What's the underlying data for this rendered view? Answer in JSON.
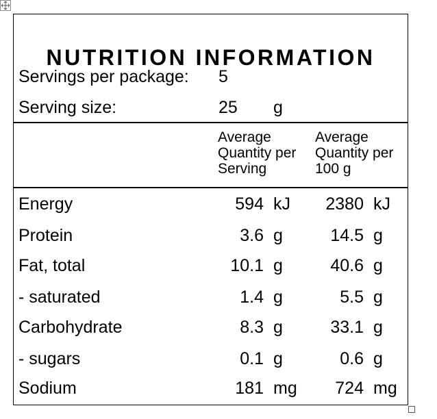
{
  "panel": {
    "title": "NUTRITION INFORMATION",
    "servings_per_package_label": "Servings per package:",
    "servings_per_package_value": "5",
    "serving_size_label": "Serving size:",
    "serving_size_value": "25",
    "serving_size_unit": "g",
    "col_per_serving_header": [
      "Average",
      "Quantity per",
      "Serving"
    ],
    "col_per_100g_header": [
      "Average",
      "Quantity per",
      "100 g"
    ]
  },
  "rows": [
    {
      "name": "Energy",
      "serving": "594",
      "serving_unit": "kJ",
      "per100": "2380",
      "per100_unit": "kJ"
    },
    {
      "name": "Protein",
      "serving": "3.6",
      "serving_unit": "g",
      "per100": "14.5",
      "per100_unit": "g"
    },
    {
      "name": "Fat, total",
      "serving": "10.1",
      "serving_unit": "g",
      "per100": "40.6",
      "per100_unit": "g"
    },
    {
      "name": "- saturated",
      "serving": "1.4",
      "serving_unit": "g",
      "per100": "5.5",
      "per100_unit": "g"
    },
    {
      "name": "Carbohydrate",
      "serving": "8.3",
      "serving_unit": "g",
      "per100": "33.1",
      "per100_unit": "g"
    },
    {
      "name": "- sugars",
      "serving": "0.1",
      "serving_unit": "g",
      "per100": "0.6",
      "per100_unit": "g"
    },
    {
      "name": "Sodium",
      "serving": "181",
      "serving_unit": "mg",
      "per100": "724",
      "per100_unit": "mg"
    }
  ]
}
